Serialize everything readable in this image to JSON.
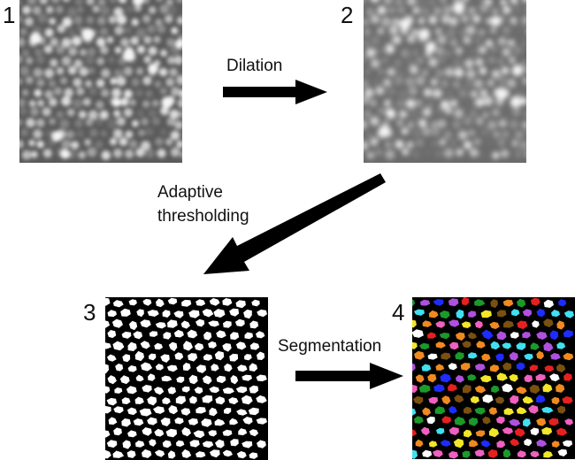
{
  "steps": [
    {
      "number": "1"
    },
    {
      "number": "2"
    },
    {
      "number": "3"
    },
    {
      "number": "4"
    }
  ],
  "arrows": {
    "dilation": "Dilation",
    "adaptive_line1": "Adaptive",
    "adaptive_line2": "thresholding",
    "segmentation": "Segmentation"
  },
  "segment_palette": [
    "#1a9a2a",
    "#e62020",
    "#1e2cff",
    "#f2e62a",
    "#b050e0",
    "#f08a20",
    "#40e0f0",
    "#f060c0",
    "#7a5010",
    "#ffffff"
  ]
}
